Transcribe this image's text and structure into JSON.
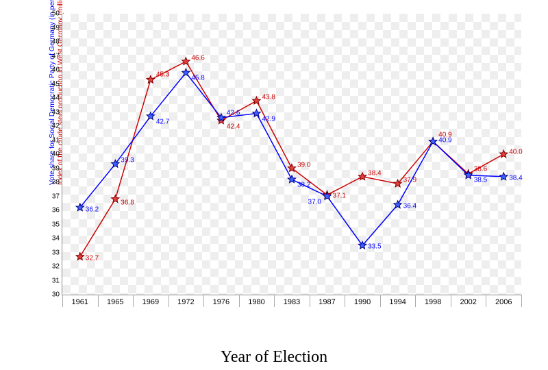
{
  "chart": {
    "type": "line",
    "xaxis_label": "Year of Election",
    "yaxis_label_blue": "Vote share for Social Democratic Party of Germany (in percentage points)",
    "yaxis_label_red": "Index of the crude steel production in West Germany (millions of tons)",
    "xaxis_font": "Times New Roman",
    "xaxis_fontsize": 24,
    "yaxis_fontsize": 10.5,
    "tick_fontsize": 10,
    "label_fontsize": 10,
    "ylim": [
      30,
      50
    ],
    "ytick_step": 1,
    "categories": [
      "1961",
      "1965",
      "1969",
      "1972",
      "1976",
      "1980",
      "1983",
      "1987",
      "1990",
      "1994",
      "1998",
      "2002",
      "2006"
    ],
    "series": {
      "blue": {
        "color": "#0000ff",
        "marker_fill": "#4060ff",
        "marker_stroke": "#000080",
        "line_width": 1.5,
        "values": [
          36.2,
          39.3,
          42.7,
          45.8,
          42.6,
          42.9,
          38.2,
          37.0,
          33.5,
          36.4,
          40.9,
          38.5,
          38.4
        ],
        "label_offsets": [
          {
            "dx": 8,
            "dy": 3
          },
          {
            "dx": 8,
            "dy": -5
          },
          {
            "dx": 8,
            "dy": 8
          },
          {
            "dx": 8,
            "dy": 8
          },
          {
            "dx": 8,
            "dy": -7
          },
          {
            "dx": 8,
            "dy": 8
          },
          {
            "dx": 8,
            "dy": 8
          },
          {
            "dx": -28,
            "dy": 8
          },
          {
            "dx": 8,
            "dy": 2
          },
          {
            "dx": 8,
            "dy": 2
          },
          {
            "dx": 8,
            "dy": -2
          },
          {
            "dx": 8,
            "dy": 7
          },
          {
            "dx": 8,
            "dy": 2
          }
        ]
      },
      "red": {
        "color": "#cc0000",
        "marker_fill": "#e04040",
        "marker_stroke": "#800000",
        "line_width": 1.5,
        "values": [
          32.7,
          36.8,
          45.3,
          46.6,
          42.4,
          43.8,
          39.0,
          37.1,
          38.4,
          37.9,
          40.9,
          38.6,
          40.0
        ],
        "label_offsets": [
          {
            "dx": 8,
            "dy": 2
          },
          {
            "dx": 8,
            "dy": 5
          },
          {
            "dx": 8,
            "dy": -7
          },
          {
            "dx": 8,
            "dy": -5
          },
          {
            "dx": 8,
            "dy": 9
          },
          {
            "dx": 8,
            "dy": -5
          },
          {
            "dx": 8,
            "dy": -5
          },
          {
            "dx": 8,
            "dy": 2
          },
          {
            "dx": 8,
            "dy": -5
          },
          {
            "dx": 8,
            "dy": -5
          },
          {
            "dx": 8,
            "dy": -10
          },
          {
            "dx": 8,
            "dy": -7
          },
          {
            "dx": 8,
            "dy": -3
          }
        ]
      }
    },
    "background_checker_color": "#eeeeee",
    "plot_border_color": "#888888"
  }
}
